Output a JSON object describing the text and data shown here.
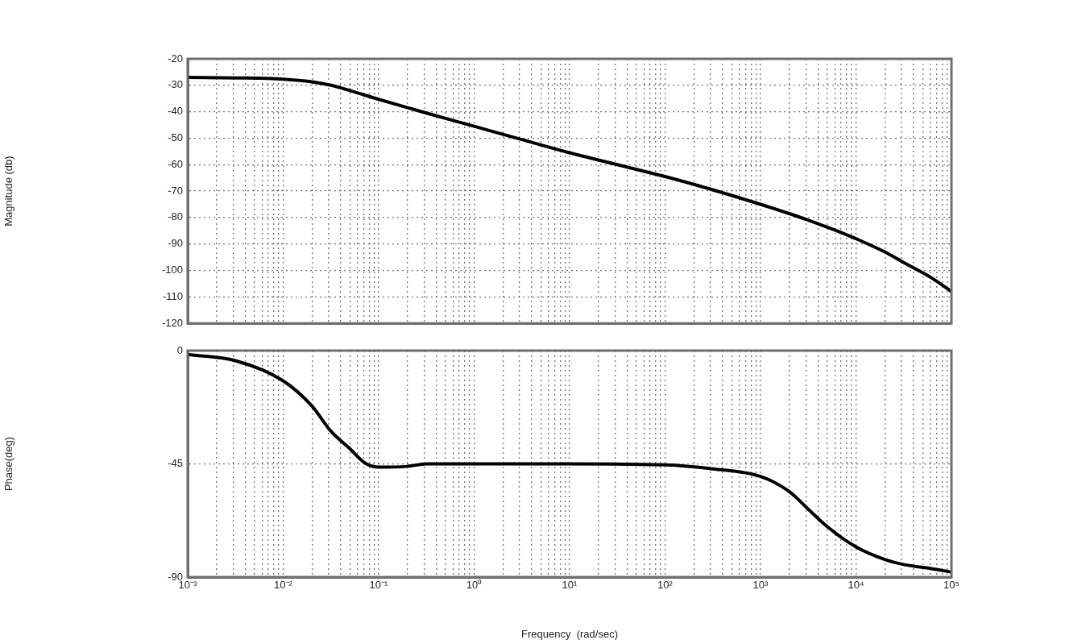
{
  "chart_data": [
    {
      "type": "line",
      "ylabel": "Magnitude (db)",
      "grid": true,
      "tick_labels": "y",
      "marker": "none",
      "line_style": "solid",
      "xlim": [
        0.001,
        100000
      ],
      "ylim": [
        -120,
        -20
      ],
      "log": "x",
      "yticks": [
        -120,
        -110,
        -100,
        -90,
        -80,
        -70,
        -60,
        -50,
        -40,
        -30,
        -20
      ],
      "xticks": [
        {
          "value": 0.001,
          "label": null
        },
        {
          "value": 0.002,
          "label": null
        },
        {
          "value": 0.003,
          "label": null
        },
        {
          "value": 0.004,
          "label": null
        },
        {
          "value": 0.005,
          "label": null
        },
        {
          "value": 0.006,
          "label": null
        },
        {
          "value": 0.007,
          "label": null
        },
        {
          "value": 0.008,
          "label": null
        },
        {
          "value": 0.009,
          "label": null
        },
        {
          "value": 0.01,
          "label": null
        },
        {
          "value": 0.02,
          "label": null
        },
        {
          "value": 0.03,
          "label": null
        },
        {
          "value": 0.04,
          "label": null
        },
        {
          "value": 0.05,
          "label": null
        },
        {
          "value": 0.06,
          "label": null
        },
        {
          "value": 0.07,
          "label": null
        },
        {
          "value": 0.08,
          "label": null
        },
        {
          "value": 0.09,
          "label": null
        },
        {
          "value": 0.1,
          "label": null
        },
        {
          "value": 0.2,
          "label": null
        },
        {
          "value": 0.3,
          "label": null
        },
        {
          "value": 0.4,
          "label": null
        },
        {
          "value": 0.5,
          "label": null
        },
        {
          "value": 0.6,
          "label": null
        },
        {
          "value": 0.7,
          "label": null
        },
        {
          "value": 0.8,
          "label": null
        },
        {
          "value": 0.9,
          "label": null
        },
        {
          "value": 1,
          "label": null
        },
        {
          "value": 2,
          "label": null
        },
        {
          "value": 3,
          "label": null
        },
        {
          "value": 4,
          "label": null
        },
        {
          "value": 5,
          "label": null
        },
        {
          "value": 6,
          "label": null
        },
        {
          "value": 7,
          "label": null
        },
        {
          "value": 8,
          "label": null
        },
        {
          "value": 9,
          "label": null
        },
        {
          "value": 10,
          "label": null
        },
        {
          "value": 20,
          "label": null
        },
        {
          "value": 30,
          "label": null
        },
        {
          "value": 40,
          "label": null
        },
        {
          "value": 50,
          "label": null
        },
        {
          "value": 60,
          "label": null
        },
        {
          "value": 70,
          "label": null
        },
        {
          "value": 80,
          "label": null
        },
        {
          "value": 90,
          "label": null
        },
        {
          "value": 100,
          "label": null
        },
        {
          "value": 200,
          "label": null
        },
        {
          "value": 300,
          "label": null
        },
        {
          "value": 400,
          "label": null
        },
        {
          "value": 500,
          "label": null
        },
        {
          "value": 600,
          "label": null
        },
        {
          "value": 700,
          "label": null
        },
        {
          "value": 800,
          "label": null
        },
        {
          "value": 900,
          "label": null
        },
        {
          "value": 1000,
          "label": null
        },
        {
          "value": 2000,
          "label": null
        },
        {
          "value": 3000,
          "label": null
        },
        {
          "value": 4000,
          "label": null
        },
        {
          "value": 5000,
          "label": null
        },
        {
          "value": 6000,
          "label": null
        },
        {
          "value": 7000,
          "label": null
        },
        {
          "value": 8000,
          "label": null
        },
        {
          "value": 9000,
          "label": null
        },
        {
          "value": 10000,
          "label": null
        },
        {
          "value": 20000,
          "label": null
        },
        {
          "value": 30000,
          "label": null
        },
        {
          "value": 40000,
          "label": null
        },
        {
          "value": 50000,
          "label": null
        },
        {
          "value": 60000,
          "label": null
        },
        {
          "value": 70000,
          "label": null
        },
        {
          "value": 80000,
          "label": null
        },
        {
          "value": 90000,
          "label": null
        },
        {
          "value": 100000,
          "label": null
        }
      ],
      "x": [
        0.001,
        0.00316,
        0.01,
        0.02,
        0.0316,
        0.05,
        0.1,
        0.316,
        1,
        3.16,
        10,
        31.6,
        100,
        316,
        1000,
        2000,
        3160,
        6310,
        10000,
        20000,
        31600,
        63100,
        100000
      ],
      "series": [
        {
          "color": "#000000",
          "values": [
            -27,
            -27.2,
            -27.7,
            -28.7,
            -30,
            -32,
            -35.3,
            -40.5,
            -45.5,
            -50.5,
            -55.5,
            -60,
            -64.5,
            -69.5,
            -75,
            -78.5,
            -81,
            -85,
            -88,
            -93,
            -97,
            -103,
            -108
          ]
        }
      ]
    },
    {
      "type": "line",
      "ylabel": "Phase(deg)",
      "xlabel": "Frequency  (rad/sec)",
      "grid": true,
      "marker": "none",
      "line_style": "solid",
      "xlim": [
        0.001,
        100000
      ],
      "ylim": [
        -90,
        0
      ],
      "log": "x",
      "yticks": [
        -90,
        -45,
        0
      ],
      "xticks": [
        {
          "value": 0.001,
          "label": "10⁻³"
        },
        {
          "value": 0.002,
          "label": null
        },
        {
          "value": 0.003,
          "label": null
        },
        {
          "value": 0.004,
          "label": null
        },
        {
          "value": 0.005,
          "label": null
        },
        {
          "value": 0.006,
          "label": null
        },
        {
          "value": 0.007,
          "label": null
        },
        {
          "value": 0.008,
          "label": null
        },
        {
          "value": 0.009,
          "label": null
        },
        {
          "value": 0.01,
          "label": "10⁻²"
        },
        {
          "value": 0.02,
          "label": null
        },
        {
          "value": 0.03,
          "label": null
        },
        {
          "value": 0.04,
          "label": null
        },
        {
          "value": 0.05,
          "label": null
        },
        {
          "value": 0.06,
          "label": null
        },
        {
          "value": 0.07,
          "label": null
        },
        {
          "value": 0.08,
          "label": null
        },
        {
          "value": 0.09,
          "label": null
        },
        {
          "value": 0.1,
          "label": "10⁻¹"
        },
        {
          "value": 0.2,
          "label": null
        },
        {
          "value": 0.3,
          "label": null
        },
        {
          "value": 0.4,
          "label": null
        },
        {
          "value": 0.5,
          "label": null
        },
        {
          "value": 0.6,
          "label": null
        },
        {
          "value": 0.7,
          "label": null
        },
        {
          "value": 0.8,
          "label": null
        },
        {
          "value": 0.9,
          "label": null
        },
        {
          "value": 1,
          "label": "10⁰"
        },
        {
          "value": 2,
          "label": null
        },
        {
          "value": 3,
          "label": null
        },
        {
          "value": 4,
          "label": null
        },
        {
          "value": 5,
          "label": null
        },
        {
          "value": 6,
          "label": null
        },
        {
          "value": 7,
          "label": null
        },
        {
          "value": 8,
          "label": null
        },
        {
          "value": 9,
          "label": null
        },
        {
          "value": 10,
          "label": "10¹"
        },
        {
          "value": 20,
          "label": null
        },
        {
          "value": 30,
          "label": null
        },
        {
          "value": 40,
          "label": null
        },
        {
          "value": 50,
          "label": null
        },
        {
          "value": 60,
          "label": null
        },
        {
          "value": 70,
          "label": null
        },
        {
          "value": 80,
          "label": null
        },
        {
          "value": 90,
          "label": null
        },
        {
          "value": 100,
          "label": "10²"
        },
        {
          "value": 200,
          "label": null
        },
        {
          "value": 300,
          "label": null
        },
        {
          "value": 400,
          "label": null
        },
        {
          "value": 500,
          "label": null
        },
        {
          "value": 600,
          "label": null
        },
        {
          "value": 700,
          "label": null
        },
        {
          "value": 800,
          "label": null
        },
        {
          "value": 900,
          "label": null
        },
        {
          "value": 1000,
          "label": "10³"
        },
        {
          "value": 2000,
          "label": null
        },
        {
          "value": 3000,
          "label": null
        },
        {
          "value": 4000,
          "label": null
        },
        {
          "value": 5000,
          "label": null
        },
        {
          "value": 6000,
          "label": null
        },
        {
          "value": 7000,
          "label": null
        },
        {
          "value": 8000,
          "label": null
        },
        {
          "value": 9000,
          "label": null
        },
        {
          "value": 10000,
          "label": "10⁴"
        },
        {
          "value": 20000,
          "label": null
        },
        {
          "value": 30000,
          "label": null
        },
        {
          "value": 40000,
          "label": null
        },
        {
          "value": 50000,
          "label": null
        },
        {
          "value": 60000,
          "label": null
        },
        {
          "value": 70000,
          "label": null
        },
        {
          "value": 80000,
          "label": null
        },
        {
          "value": 90000,
          "label": null
        },
        {
          "value": 100000,
          "label": "10⁵"
        }
      ],
      "x": [
        0.001,
        0.00316,
        0.01,
        0.02,
        0.0316,
        0.05,
        0.0708,
        0.1,
        0.2,
        0.316,
        1,
        10,
        100,
        316,
        1000,
        2000,
        3160,
        5010,
        10000,
        20000,
        31600,
        63100,
        100000
      ],
      "series": [
        {
          "color": "#000000",
          "values": [
            -1.5,
            -4,
            -12,
            -22,
            -32,
            -39,
            -44.5,
            -46.3,
            -46,
            -45,
            -45,
            -45,
            -45.4,
            -47,
            -50,
            -56,
            -63,
            -70,
            -78,
            -83,
            -85,
            -86.7,
            -88
          ]
        }
      ]
    }
  ]
}
